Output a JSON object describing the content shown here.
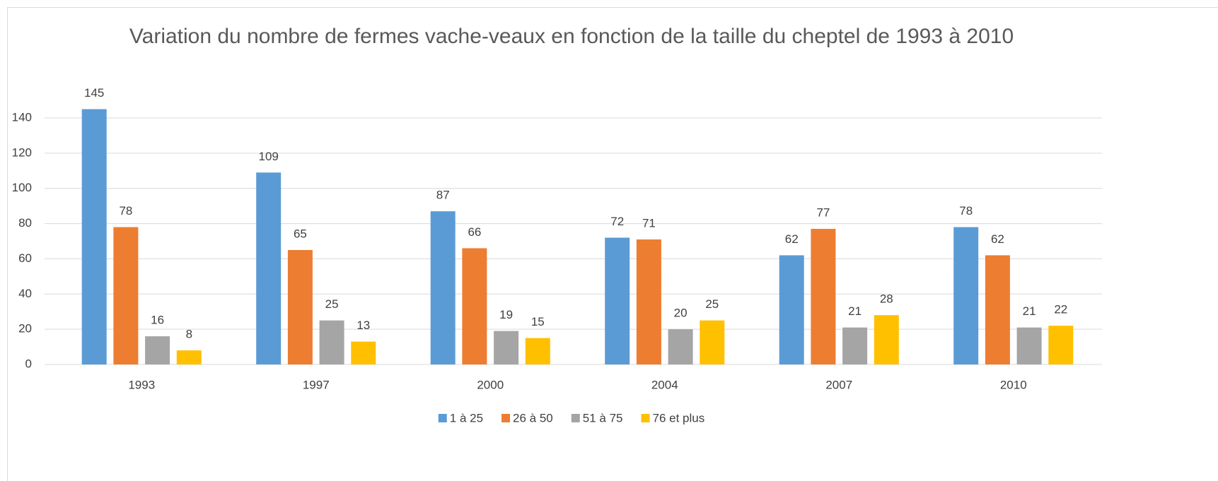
{
  "chart_data": {
    "type": "bar",
    "title": "Variation du nombre de fermes vache-veaux en fonction de la taille du cheptel de 1993 à 2010",
    "categories": [
      "1993",
      "1997",
      "2000",
      "2004",
      "2007",
      "2010"
    ],
    "series": [
      {
        "name": "1 à 25",
        "color": "#5b9bd5",
        "values": [
          145,
          109,
          87,
          72,
          62,
          78
        ]
      },
      {
        "name": "26 à 50",
        "color": "#ed7d31",
        "values": [
          78,
          65,
          66,
          71,
          77,
          62
        ]
      },
      {
        "name": "51 à 75",
        "color": "#a5a5a5",
        "values": [
          16,
          25,
          19,
          20,
          21,
          21
        ]
      },
      {
        "name": "76 et plus",
        "color": "#ffc000",
        "values": [
          8,
          13,
          15,
          25,
          28,
          22
        ]
      }
    ],
    "ylim": [
      0,
      140
    ],
    "yticks": [
      0,
      20,
      40,
      60,
      80,
      100,
      120,
      140
    ],
    "grid": true,
    "legend": "bottom"
  }
}
